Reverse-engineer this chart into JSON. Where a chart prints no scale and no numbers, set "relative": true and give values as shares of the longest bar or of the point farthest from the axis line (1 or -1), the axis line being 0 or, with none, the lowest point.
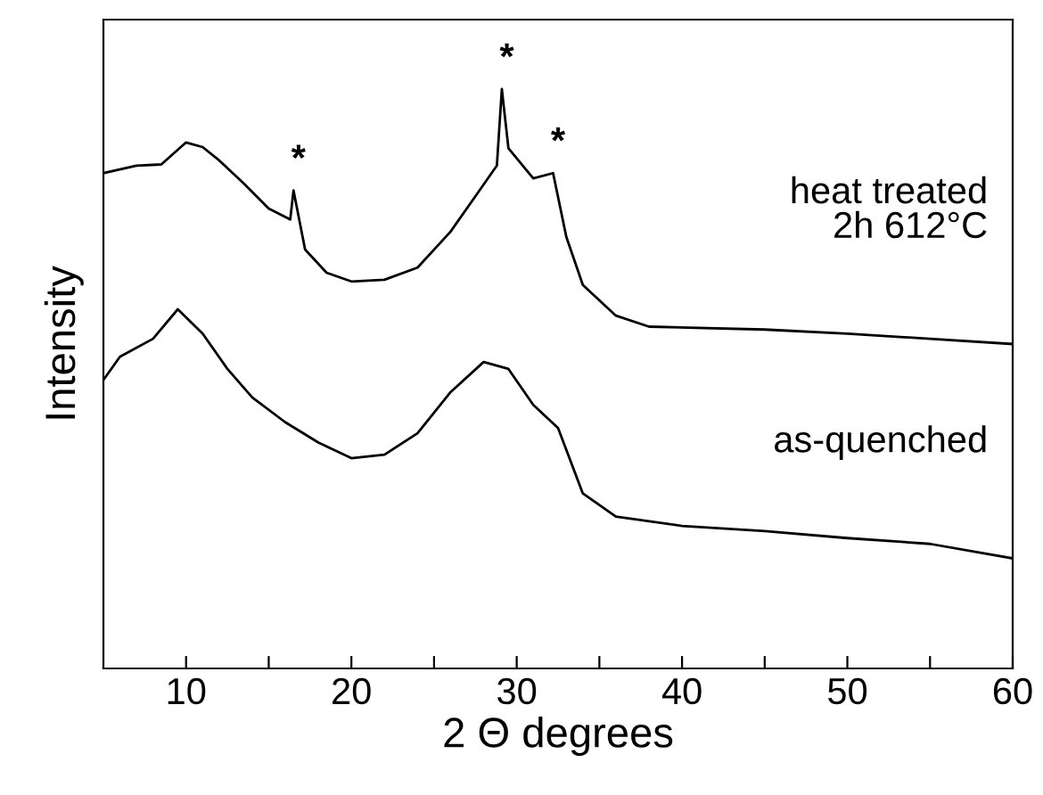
{
  "chart_data": {
    "type": "line",
    "relative": true,
    "xlabel": "2 Θ degrees",
    "ylabel": "Intensity",
    "xlim": [
      5,
      60
    ],
    "xticks": [
      10,
      {
        "value": 15,
        "label": null
      },
      20,
      {
        "value": 25,
        "label": null
      },
      30,
      {
        "value": 35,
        "label": null
      },
      40,
      {
        "value": 45,
        "label": null
      },
      50,
      {
        "value": 55,
        "label": null
      },
      60
    ],
    "grid": false,
    "legend": false,
    "marker": "none",
    "line_style": "solid",
    "series": [
      {
        "name": "heat treated\n2h 612°C",
        "color": "#000000",
        "x": [
          5,
          7,
          8.5,
          10,
          11,
          12,
          13.5,
          15,
          16.3,
          16.5,
          17.2,
          18.5,
          20,
          22,
          24,
          26,
          27.5,
          28.8,
          29.1,
          29.5,
          31,
          32.2,
          33,
          34,
          36,
          38,
          45,
          50,
          55,
          60
        ],
        "values": [
          0.855,
          0.868,
          0.87,
          0.908,
          0.9,
          0.877,
          0.837,
          0.794,
          0.775,
          0.825,
          0.723,
          0.683,
          0.668,
          0.671,
          0.692,
          0.754,
          0.815,
          0.868,
          1.0,
          0.898,
          0.846,
          0.855,
          0.745,
          0.662,
          0.609,
          0.59,
          0.585,
          0.578,
          0.569,
          0.56
        ]
      },
      {
        "name": "as-quenched",
        "color": "#000000",
        "x": [
          5,
          6,
          8,
          9.5,
          11,
          12.5,
          14,
          16,
          18,
          20,
          22,
          24,
          26,
          28,
          29.5,
          31,
          32.5,
          34,
          36,
          40,
          45,
          50,
          55,
          60
        ],
        "values": [
          0.498,
          0.538,
          0.569,
          0.62,
          0.578,
          0.517,
          0.468,
          0.425,
          0.39,
          0.363,
          0.369,
          0.406,
          0.477,
          0.529,
          0.517,
          0.455,
          0.415,
          0.302,
          0.262,
          0.246,
          0.237,
          0.225,
          0.215,
          0.19
        ]
      }
    ],
    "annotations": [
      {
        "text": "*",
        "x": 16.5,
        "y": 0.825
      },
      {
        "text": "*",
        "x": 29.1,
        "y": 1.0
      },
      {
        "text": "*",
        "x": 32.2,
        "y": 0.855
      }
    ]
  }
}
